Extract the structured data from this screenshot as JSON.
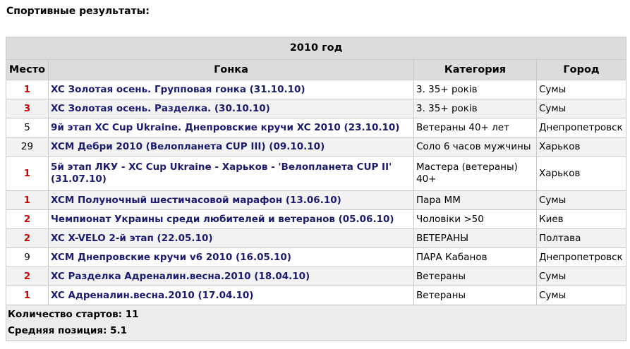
{
  "title": "Спортивные результаты:",
  "table": {
    "year_header": "2010 год",
    "columns": [
      "Место",
      "Гонка",
      "Категория",
      "Город"
    ],
    "rows": [
      {
        "place": "1",
        "highlight": true,
        "race": "XC Золотая осень. Групповая гонка (31.10.10)",
        "category": "3. 35+ років",
        "city": "Сумы"
      },
      {
        "place": "3",
        "highlight": true,
        "race": "XC Золотая осень. Разделка. (30.10.10)",
        "category": "3. 35+ років",
        "city": "Сумы"
      },
      {
        "place": "5",
        "highlight": false,
        "race": "9й этап XC Cup Ukraine. Днепровские кручи XC 2010 (23.10.10)",
        "category": "Ветераны 40+ лет",
        "city": "Днепропетровск"
      },
      {
        "place": "29",
        "highlight": false,
        "race": "XCM Дебри 2010 (Велопланета CUP III) (09.10.10)",
        "category": "Соло 6 часов мужчины",
        "city": "Харьков"
      },
      {
        "place": "1",
        "highlight": true,
        "race": "5й этап ЛКУ - XC Cup Ukraine - Харьков - 'Велопланета CUP II' (31.07.10)",
        "category": "Мастера (ветераны) 40+",
        "city": "Харьков"
      },
      {
        "place": "1",
        "highlight": true,
        "race": "XCM Полуночный шестичасовой марафон (13.06.10)",
        "category": "Пара ММ",
        "city": "Сумы"
      },
      {
        "place": "2",
        "highlight": true,
        "race": "Чемпионат Украины среди любителей и ветеранов (05.06.10)",
        "category": "Чоловіки >50",
        "city": "Киев"
      },
      {
        "place": "2",
        "highlight": true,
        "race": "XC X-VELO 2-й этап (22.05.10)",
        "category": "ВЕТЕРАНЫ",
        "city": "Полтава"
      },
      {
        "place": "9",
        "highlight": false,
        "race": "XCM Днепровские кручи v6 2010 (16.05.10)",
        "category": "ПАРА Кабанов",
        "city": "Днепропетровск"
      },
      {
        "place": "2",
        "highlight": true,
        "race": "XC Разделка Адреналин.весна.2010 (18.04.10)",
        "category": "Ветераны",
        "city": "Сумы"
      },
      {
        "place": "1",
        "highlight": true,
        "race": "XC Адреналин.весна.2010 (17.04.10)",
        "category": "Ветераны",
        "city": "Сумы"
      }
    ],
    "footer": {
      "starts": "Количество стартов: 11",
      "avg": "Средняя позиция: 5.1"
    }
  },
  "colors": {
    "highlight_place": "#d00000",
    "link": "#1b1b70",
    "header_bg": "#dcdcdc"
  }
}
